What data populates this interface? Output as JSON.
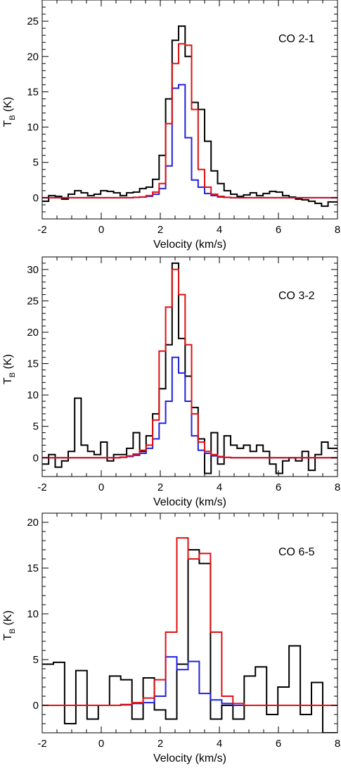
{
  "colors": {
    "observed": "#000000",
    "model_a": "#2222dd",
    "model_b": "#e01010",
    "axis": "#000000"
  },
  "chart_data": [
    {
      "type": "line",
      "label": "CO 2-1",
      "xlabel": "Velocity (km/s)",
      "ylabel_main": "T",
      "ylabel_sub": "B",
      "ylabel_unit": "(K)",
      "xlim": [
        -2,
        8
      ],
      "ylim": [
        -3,
        28
      ],
      "xticks": [
        -2,
        0,
        2,
        4,
        6,
        8
      ],
      "yticks": [
        0,
        5,
        10,
        15,
        20,
        25
      ],
      "series": [
        {
          "color": "observed",
          "step": true,
          "bin_width": 0.22,
          "x": [
            -2.0,
            -1.78,
            -1.56,
            -1.34,
            -1.12,
            -0.9,
            -0.68,
            -0.46,
            -0.24,
            -0.02,
            0.2,
            0.42,
            0.64,
            0.86,
            1.08,
            1.3,
            1.52,
            1.74,
            1.96,
            2.18,
            2.4,
            2.62,
            2.84,
            3.06,
            3.28,
            3.5,
            3.72,
            3.94,
            4.16,
            4.38,
            4.6,
            4.82,
            5.04,
            5.26,
            5.48,
            5.7,
            5.92,
            6.14,
            6.36,
            6.58,
            6.8,
            7.02,
            7.24,
            7.46,
            7.68
          ],
          "y": [
            -0.5,
            0.3,
            0.2,
            -0.2,
            0.5,
            1.0,
            0.7,
            0.3,
            0.5,
            1.0,
            0.9,
            0.7,
            0.3,
            0.7,
            0.8,
            1.3,
            1.5,
            2.6,
            6.0,
            14.0,
            22.3,
            24.3,
            20.0,
            13.5,
            12.5,
            8.0,
            3.8,
            2.0,
            1.0,
            0.5,
            0.2,
            0.4,
            0.7,
            0.3,
            0.6,
            0.9,
            0.8,
            0.3,
            0.1,
            -0.2,
            -0.3,
            -0.5,
            -0.8,
            -1.2,
            -0.6
          ]
        },
        {
          "color": "model_a",
          "step": true,
          "bin_width": 0.22,
          "x": [
            -2.0,
            1.08,
            1.3,
            1.52,
            1.74,
            1.96,
            2.18,
            2.4,
            2.62,
            2.84,
            3.06,
            3.28,
            3.5,
            3.72,
            3.94,
            4.16,
            4.38
          ],
          "y": [
            0.0,
            0.05,
            0.1,
            0.2,
            0.5,
            1.3,
            4.5,
            15.5,
            16.0,
            8.5,
            2.5,
            1.5,
            0.6,
            0.3,
            0.1,
            0.05,
            0.0
          ]
        },
        {
          "color": "model_b",
          "step": true,
          "bin_width": 0.22,
          "x": [
            -2.0,
            1.08,
            1.3,
            1.52,
            1.74,
            1.96,
            2.18,
            2.4,
            2.62,
            2.84,
            3.06,
            3.28,
            3.5,
            3.72,
            3.94,
            4.16,
            4.38
          ],
          "y": [
            0.0,
            0.05,
            0.1,
            0.3,
            0.8,
            2.0,
            10.5,
            19.0,
            21.8,
            21.6,
            12.5,
            4.0,
            1.5,
            0.5,
            0.2,
            0.05,
            0.0
          ]
        }
      ]
    },
    {
      "type": "line",
      "label": "CO 3-2",
      "xlabel": "Velocity (km/s)",
      "ylabel_main": "T",
      "ylabel_sub": "B",
      "ylabel_unit": "(K)",
      "xlim": [
        -2,
        8
      ],
      "ylim": [
        -3,
        32
      ],
      "xticks": [
        -2,
        0,
        2,
        4,
        6,
        8
      ],
      "yticks": [
        0,
        5,
        10,
        15,
        20,
        25,
        30
      ],
      "series": [
        {
          "color": "observed",
          "step": true,
          "bin_width": 0.22,
          "x": [
            -2.0,
            -1.78,
            -1.56,
            -1.34,
            -1.12,
            -0.9,
            -0.68,
            -0.46,
            -0.24,
            -0.02,
            0.2,
            0.42,
            0.64,
            0.86,
            1.08,
            1.3,
            1.52,
            1.74,
            1.96,
            2.18,
            2.4,
            2.62,
            2.84,
            3.06,
            3.28,
            3.5,
            3.72,
            3.94,
            4.16,
            4.38,
            4.6,
            4.82,
            5.04,
            5.26,
            5.48,
            5.7,
            5.92,
            6.14,
            6.36,
            6.58,
            6.8,
            7.02,
            7.24,
            7.46,
            7.68
          ],
          "y": [
            -1.0,
            0.5,
            -1.5,
            -0.5,
            1.0,
            9.5,
            2.0,
            1.0,
            0.5,
            2.5,
            -0.5,
            0.5,
            0.5,
            1.5,
            4.0,
            1.0,
            3.5,
            7.0,
            11.0,
            18.0,
            31.0,
            19.0,
            13.0,
            8.0,
            3.0,
            -2.5,
            4.0,
            -1.0,
            3.5,
            2.0,
            1.5,
            2.0,
            1.0,
            2.0,
            1.0,
            -1.0,
            -2.5,
            -0.5,
            0.0,
            -0.5,
            1.0,
            -2.0,
            0.5,
            2.5,
            1.5
          ]
        },
        {
          "color": "model_a",
          "step": true,
          "bin_width": 0.22,
          "x": [
            -2.0,
            0.64,
            0.86,
            1.08,
            1.3,
            1.52,
            1.74,
            1.96,
            2.18,
            2.4,
            2.62,
            2.84,
            3.06,
            3.28,
            3.5,
            3.72,
            3.94,
            4.16,
            4.38
          ],
          "y": [
            0.0,
            0.05,
            0.2,
            0.4,
            0.7,
            1.5,
            3.0,
            5.5,
            9.0,
            16.0,
            13.5,
            9.0,
            3.5,
            1.2,
            0.7,
            0.3,
            0.1,
            0.05,
            0.0
          ]
        },
        {
          "color": "model_b",
          "step": true,
          "bin_width": 0.22,
          "x": [
            -2.0,
            0.64,
            0.86,
            1.08,
            1.3,
            1.52,
            1.74,
            1.96,
            2.18,
            2.4,
            2.62,
            2.84,
            3.06,
            3.28,
            3.5,
            3.72,
            3.94,
            4.16,
            4.38
          ],
          "y": [
            0.0,
            0.1,
            0.3,
            0.6,
            1.2,
            2.0,
            6.0,
            17.0,
            24.0,
            30.0,
            26.0,
            18.0,
            7.0,
            2.5,
            1.0,
            0.5,
            0.2,
            0.05,
            0.0
          ]
        }
      ]
    },
    {
      "type": "line",
      "label": "CO 6-5",
      "xlabel": "Velocity (km/s)",
      "ylabel_main": "T",
      "ylabel_sub": "B",
      "ylabel_unit": "(K)",
      "xlim": [
        -2,
        8
      ],
      "ylim": [
        -3,
        21
      ],
      "xticks": [
        -2,
        0,
        2,
        4,
        6,
        8
      ],
      "yticks": [
        0,
        5,
        10,
        15,
        20
      ],
      "series": [
        {
          "color": "observed",
          "step": true,
          "bin_width": 0.38,
          "x": [
            -2.0,
            -1.62,
            -1.24,
            -0.86,
            -0.48,
            -0.1,
            0.28,
            0.66,
            1.04,
            1.42,
            1.8,
            2.18,
            2.56,
            2.94,
            3.32,
            3.7,
            4.08,
            4.46,
            4.84,
            5.22,
            5.6,
            5.98,
            6.36,
            6.74,
            7.12,
            7.5
          ],
          "y": [
            4.5,
            4.7,
            -2.0,
            3.8,
            -1.5,
            0.0,
            3.2,
            2.8,
            -1.5,
            3.0,
            -0.5,
            -1.5,
            4.5,
            17.0,
            15.5,
            -1.5,
            0.0,
            -1.5,
            3.2,
            4.2,
            -1.0,
            2.0,
            6.5,
            -1.0,
            2.5,
            -3.0
          ]
        },
        {
          "color": "model_a",
          "step": true,
          "bin_width": 0.38,
          "x": [
            -2.0,
            0.66,
            1.04,
            1.42,
            1.8,
            2.18,
            2.56,
            2.94,
            3.32,
            3.7,
            4.08,
            4.46,
            4.84
          ],
          "y": [
            0.0,
            0.05,
            0.2,
            0.3,
            1.0,
            5.3,
            3.9,
            4.8,
            1.3,
            0.6,
            0.2,
            0.0,
            0.0
          ]
        },
        {
          "color": "model_b",
          "step": true,
          "bin_width": 0.38,
          "x": [
            -2.0,
            0.66,
            1.04,
            1.42,
            1.8,
            2.18,
            2.56,
            2.94,
            3.32,
            3.7,
            4.08,
            4.46,
            4.84
          ],
          "y": [
            0.0,
            0.1,
            0.3,
            0.8,
            2.8,
            8.0,
            18.3,
            16.0,
            16.6,
            8.0,
            1.0,
            0.2,
            0.0
          ]
        }
      ]
    }
  ]
}
